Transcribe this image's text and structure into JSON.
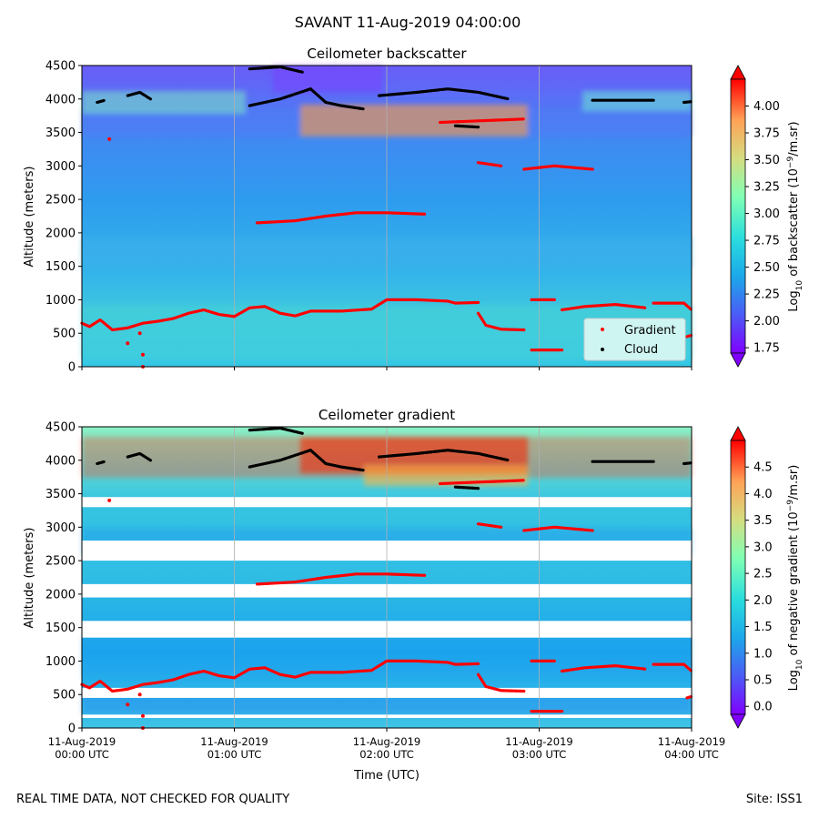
{
  "figure": {
    "suptitle": "SAVANT 11-Aug-2019 04:00:00",
    "footer_left": "REAL TIME DATA, NOT CHECKED FOR QUALITY",
    "footer_right": "Site: ISS1"
  },
  "colors": {
    "gradient_marker": "#ff0000",
    "cloud_marker": "#000000",
    "grid": "#b0b0b0"
  },
  "chart_data": [
    {
      "type": "heatmap",
      "title": "Ceilometer backscatter",
      "ylabel": "Altitude (meters)",
      "xlabel": "",
      "ylim": [
        0,
        4500
      ],
      "yticks": [
        "0",
        "500",
        "1000",
        "1500",
        "2000",
        "2500",
        "3000",
        "3500",
        "4000",
        "4500"
      ],
      "xlim_hours": [
        0,
        4
      ],
      "xticks_hours": [
        0,
        1,
        2,
        3,
        4
      ],
      "show_xticklabels": false,
      "colorbar": {
        "label": "Log10 of backscatter (10^-9/m.sr)",
        "label_parts": [
          "Log",
          "10",
          " of backscatter (10",
          "−9",
          "/m.sr)"
        ],
        "range": [
          1.7,
          4.25
        ],
        "ticks": [
          "1.75",
          "2.00",
          "2.25",
          "2.50",
          "2.75",
          "3.00",
          "3.25",
          "3.50",
          "3.75",
          "4.00"
        ],
        "tick_values": [
          1.75,
          2.0,
          2.25,
          2.5,
          2.75,
          3.0,
          3.25,
          3.5,
          3.75,
          4.0
        ]
      },
      "legend": {
        "location": "lower right",
        "entries": [
          "Gradient",
          "Cloud"
        ]
      },
      "series": [
        {
          "name": "Gradient",
          "segments": [
            [
              [
                0.0,
                650
              ],
              [
                0.05,
                600
              ],
              [
                0.12,
                700
              ],
              [
                0.2,
                550
              ],
              [
                0.3,
                580
              ],
              [
                0.4,
                650
              ],
              [
                0.5,
                680
              ],
              [
                0.6,
                720
              ],
              [
                0.7,
                800
              ],
              [
                0.8,
                850
              ],
              [
                0.9,
                780
              ],
              [
                1.0,
                750
              ],
              [
                1.1,
                880
              ],
              [
                1.2,
                900
              ],
              [
                1.3,
                800
              ],
              [
                1.4,
                760
              ],
              [
                1.5,
                830
              ],
              [
                1.7,
                830
              ],
              [
                1.9,
                860
              ],
              [
                2.0,
                1000
              ],
              [
                2.2,
                1000
              ],
              [
                2.4,
                980
              ],
              [
                2.45,
                950
              ],
              [
                2.6,
                960
              ]
            ],
            [
              [
                1.15,
                2150
              ],
              [
                1.4,
                2180
              ],
              [
                1.6,
                2250
              ],
              [
                1.8,
                2300
              ],
              [
                2.0,
                2300
              ],
              [
                2.25,
                2280
              ]
            ],
            [
              [
                2.6,
                3050
              ],
              [
                2.75,
                3000
              ]
            ],
            [
              [
                2.9,
                2950
              ],
              [
                3.1,
                3000
              ],
              [
                3.35,
                2950
              ]
            ],
            [
              [
                2.6,
                800
              ],
              [
                2.65,
                620
              ],
              [
                2.75,
                560
              ],
              [
                2.9,
                550
              ]
            ],
            [
              [
                2.95,
                1000
              ],
              [
                3.1,
                1000
              ]
            ],
            [
              [
                3.15,
                850
              ],
              [
                3.3,
                900
              ],
              [
                3.5,
                930
              ],
              [
                3.7,
                880
              ]
            ],
            [
              [
                3.75,
                950
              ],
              [
                3.95,
                950
              ],
              [
                4.0,
                850
              ]
            ],
            [
              [
                2.95,
                250
              ],
              [
                3.15,
                250
              ]
            ],
            [
              [
                3.97,
                450
              ],
              [
                4.0,
                470
              ]
            ],
            [
              [
                2.35,
                3650
              ],
              [
                2.9,
                3700
              ]
            ]
          ],
          "points": [
            [
              0.18,
              3400
            ],
            [
              0.3,
              350
            ],
            [
              0.38,
              500
            ],
            [
              0.4,
              180
            ],
            [
              0.4,
              0
            ]
          ]
        },
        {
          "name": "Cloud",
          "segments": [
            [
              [
                0.1,
                3950
              ],
              [
                0.15,
                3980
              ]
            ],
            [
              [
                0.3,
                4050
              ],
              [
                0.38,
                4100
              ],
              [
                0.45,
                4000
              ]
            ],
            [
              [
                1.1,
                3900
              ],
              [
                1.3,
                4000
              ],
              [
                1.5,
                4150
              ],
              [
                1.6,
                3950
              ],
              [
                1.7,
                3900
              ],
              [
                1.85,
                3850
              ]
            ],
            [
              [
                1.1,
                4450
              ],
              [
                1.3,
                4480
              ],
              [
                1.45,
                4400
              ]
            ],
            [
              [
                1.95,
                4050
              ],
              [
                2.2,
                4100
              ],
              [
                2.4,
                4150
              ],
              [
                2.6,
                4100
              ],
              [
                2.8,
                4000
              ]
            ],
            [
              [
                2.45,
                3600
              ],
              [
                2.6,
                3580
              ]
            ],
            [
              [
                3.35,
                3980
              ],
              [
                3.75,
                3980
              ]
            ],
            [
              [
                3.95,
                3950
              ],
              [
                4.0,
                3960
              ]
            ]
          ]
        }
      ]
    },
    {
      "type": "heatmap",
      "title": "Ceilometer gradient",
      "ylabel": "Altitude (meters)",
      "xlabel": "Time (UTC)",
      "ylim": [
        0,
        4500
      ],
      "yticks": [
        "0",
        "500",
        "1000",
        "1500",
        "2000",
        "2500",
        "3000",
        "3500",
        "4000",
        "4500"
      ],
      "xlim_hours": [
        0,
        4
      ],
      "xticks_hours": [
        0,
        1,
        2,
        3,
        4
      ],
      "xticklabels": [
        [
          "11-Aug-2019",
          "00:00 UTC"
        ],
        [
          "11-Aug-2019",
          "01:00 UTC"
        ],
        [
          "11-Aug-2019",
          "02:00 UTC"
        ],
        [
          "11-Aug-2019",
          "03:00 UTC"
        ],
        [
          "11-Aug-2019",
          "04:00 UTC"
        ]
      ],
      "colorbar": {
        "label": "Log10 of negative gradient (10^-9/m.sr)",
        "label_parts": [
          "Log",
          "10",
          " of negative gradient (10",
          "−9",
          "/m.sr)"
        ],
        "range": [
          -0.15,
          5.0
        ],
        "ticks": [
          "0.0",
          "0.5",
          "1.0",
          "1.5",
          "2.0",
          "2.5",
          "3.0",
          "3.5",
          "4.0",
          "4.5"
        ],
        "tick_values": [
          0.0,
          0.5,
          1.0,
          1.5,
          2.0,
          2.5,
          3.0,
          3.5,
          4.0,
          4.5
        ]
      },
      "empty_bands": [
        [
          150,
          200
        ],
        [
          450,
          600
        ],
        [
          1350,
          1600
        ],
        [
          1950,
          2150
        ],
        [
          2500,
          2800
        ],
        [
          3300,
          3450
        ]
      ],
      "series": [
        {
          "name": "Gradient",
          "segments": [
            [
              [
                0.0,
                650
              ],
              [
                0.05,
                600
              ],
              [
                0.12,
                700
              ],
              [
                0.2,
                550
              ],
              [
                0.3,
                580
              ],
              [
                0.4,
                650
              ],
              [
                0.5,
                680
              ],
              [
                0.6,
                720
              ],
              [
                0.7,
                800
              ],
              [
                0.8,
                850
              ],
              [
                0.9,
                780
              ],
              [
                1.0,
                750
              ],
              [
                1.1,
                880
              ],
              [
                1.2,
                900
              ],
              [
                1.3,
                800
              ],
              [
                1.4,
                760
              ],
              [
                1.5,
                830
              ],
              [
                1.7,
                830
              ],
              [
                1.9,
                860
              ],
              [
                2.0,
                1000
              ],
              [
                2.2,
                1000
              ],
              [
                2.4,
                980
              ],
              [
                2.45,
                950
              ],
              [
                2.6,
                960
              ]
            ],
            [
              [
                1.15,
                2150
              ],
              [
                1.4,
                2180
              ],
              [
                1.6,
                2250
              ],
              [
                1.8,
                2300
              ],
              [
                2.0,
                2300
              ],
              [
                2.25,
                2280
              ]
            ],
            [
              [
                2.6,
                3050
              ],
              [
                2.75,
                3000
              ]
            ],
            [
              [
                2.9,
                2950
              ],
              [
                3.1,
                3000
              ],
              [
                3.35,
                2950
              ]
            ],
            [
              [
                2.6,
                800
              ],
              [
                2.65,
                620
              ],
              [
                2.75,
                560
              ],
              [
                2.9,
                550
              ]
            ],
            [
              [
                2.95,
                1000
              ],
              [
                3.1,
                1000
              ]
            ],
            [
              [
                3.15,
                850
              ],
              [
                3.3,
                900
              ],
              [
                3.5,
                930
              ],
              [
                3.7,
                880
              ]
            ],
            [
              [
                3.75,
                950
              ],
              [
                3.95,
                950
              ],
              [
                4.0,
                850
              ]
            ],
            [
              [
                2.95,
                250
              ],
              [
                3.15,
                250
              ]
            ],
            [
              [
                3.97,
                450
              ],
              [
                4.0,
                470
              ]
            ],
            [
              [
                2.35,
                3650
              ],
              [
                2.9,
                3700
              ]
            ]
          ],
          "points": [
            [
              0.18,
              3400
            ],
            [
              0.3,
              350
            ],
            [
              0.38,
              500
            ],
            [
              0.4,
              180
            ],
            [
              0.4,
              0
            ]
          ]
        },
        {
          "name": "Cloud",
          "segments": [
            [
              [
                0.1,
                3950
              ],
              [
                0.15,
                3980
              ]
            ],
            [
              [
                0.3,
                4050
              ],
              [
                0.38,
                4100
              ],
              [
                0.45,
                4000
              ]
            ],
            [
              [
                1.1,
                3900
              ],
              [
                1.3,
                4000
              ],
              [
                1.5,
                4150
              ],
              [
                1.6,
                3950
              ],
              [
                1.7,
                3900
              ],
              [
                1.85,
                3850
              ]
            ],
            [
              [
                1.1,
                4450
              ],
              [
                1.3,
                4480
              ],
              [
                1.45,
                4400
              ]
            ],
            [
              [
                1.95,
                4050
              ],
              [
                2.2,
                4100
              ],
              [
                2.4,
                4150
              ],
              [
                2.6,
                4100
              ],
              [
                2.8,
                4000
              ]
            ],
            [
              [
                2.45,
                3600
              ],
              [
                2.6,
                3580
              ]
            ],
            [
              [
                3.35,
                3980
              ],
              [
                3.75,
                3980
              ]
            ],
            [
              [
                3.95,
                3950
              ],
              [
                4.0,
                3960
              ]
            ]
          ]
        }
      ]
    }
  ]
}
